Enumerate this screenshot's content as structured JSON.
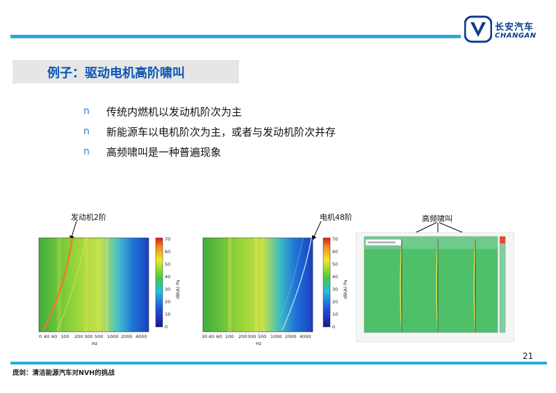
{
  "header": {
    "logo_cn": "长安汽车",
    "logo_en": "CHANGAN",
    "emblem_icon": "changan-v-emblem-icon",
    "brand_color": "#0b3c8c",
    "rule_color": "#29a9e0"
  },
  "title": "例子：驱动电机高阶啸叫",
  "bullets": [
    {
      "mark": "n",
      "text": "传统内燃机以发动机阶次为主"
    },
    {
      "mark": "n",
      "text": "新能源车以电机阶次为主，或者与发动机阶次并存"
    },
    {
      "mark": "n",
      "text": "高频啸叫是一种普遍现象"
    }
  ],
  "annotations": {
    "engine_order": "发动机2阶",
    "motor_order": "电机48阶",
    "whine": "高频啸叫"
  },
  "plots": [
    {
      "id": "plot1",
      "xlabel": "Hz",
      "x_ticks": [
        "0",
        "40",
        "60",
        "100",
        "200",
        "300",
        "500",
        "1000",
        "2000",
        "4000"
      ],
      "colorbar_ticks": [
        "70",
        "60",
        "50",
        "40",
        "30",
        "20",
        "10",
        "0"
      ],
      "colorbar_label": "dB(A) Pa"
    },
    {
      "id": "plot2",
      "xlabel": "Hz",
      "x_ticks": [
        "30",
        "40",
        "60",
        "100",
        "200",
        "300",
        "500",
        "1000",
        "2000",
        "4000"
      ],
      "colorbar_ticks": [
        "70",
        "60",
        "50",
        "40",
        "30",
        "20",
        "10",
        "0"
      ],
      "colorbar_label": "dB(A) Pa"
    }
  ],
  "page_number": "21",
  "footer": "庞剑：清洁能源汽车对NVH的挑战"
}
